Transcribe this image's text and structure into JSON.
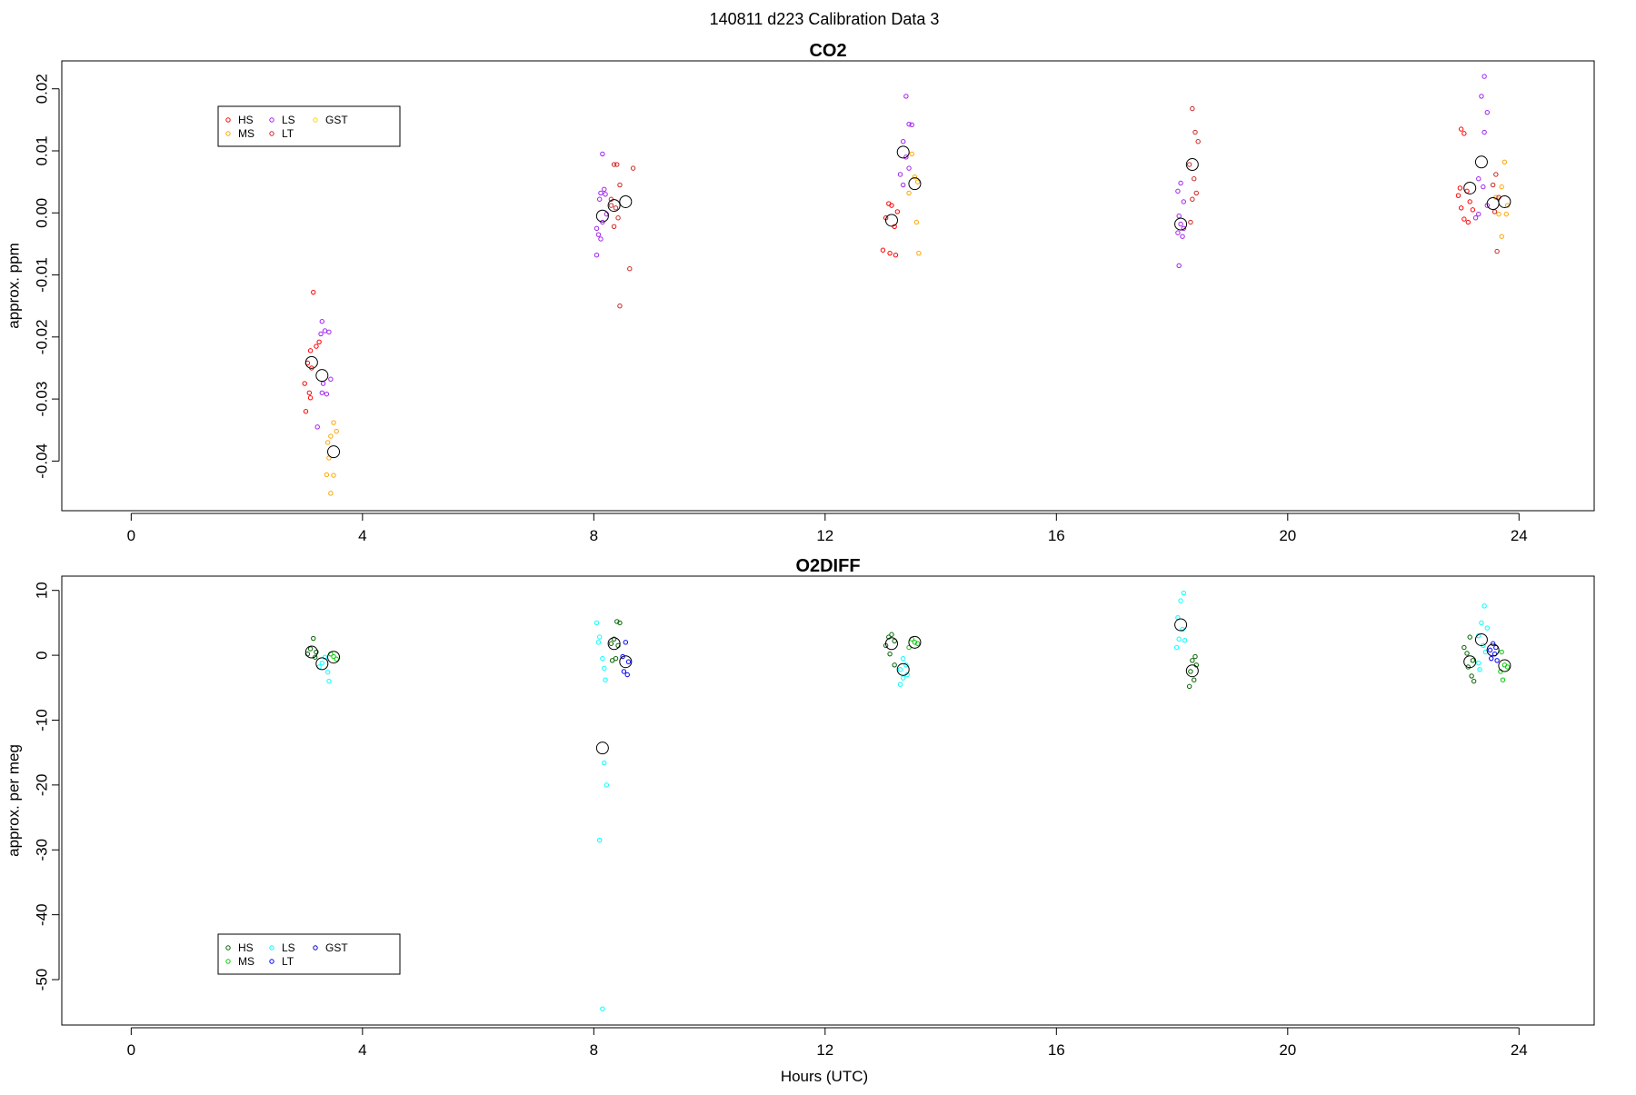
{
  "page_title": "140811   d223   Calibration Data 3",
  "x_axis_label": "Hours (UTC)",
  "chart_data": [
    {
      "type": "scatter",
      "title": "CO2",
      "ylabel": "approx. ppm",
      "xlim": [
        -1.2,
        25.3
      ],
      "ylim": [
        -0.048,
        0.0245
      ],
      "xticks": [
        0,
        4,
        8,
        12,
        16,
        20,
        24
      ],
      "yticks": [
        -0.04,
        -0.03,
        -0.02,
        -0.01,
        0.0,
        0.01,
        0.02
      ],
      "ytick_labels": [
        "-0.04",
        "-0.03",
        "-0.02",
        "-0.01",
        "0.00",
        "0.01",
        "0.02"
      ],
      "grid": false,
      "legend": {
        "position": "top-left",
        "entries": [
          {
            "label": "HS",
            "color": "#ff0000"
          },
          {
            "label": "MS",
            "color": "#ffa500"
          },
          {
            "label": "LS",
            "color": "#a020f0"
          },
          {
            "label": "LT",
            "color": "#cd2626"
          },
          {
            "label": "GST",
            "color": "#ffd700"
          }
        ]
      },
      "series": [
        {
          "color": "#ff0000",
          "points": [
            [
              3.15,
              -0.0128
            ],
            [
              3.1,
              -0.0222
            ],
            [
              3.2,
              -0.0215
            ],
            [
              3.25,
              -0.0208
            ],
            [
              3.05,
              -0.0242
            ],
            [
              3.12,
              -0.025
            ],
            [
              3.0,
              -0.0275
            ],
            [
              3.08,
              -0.029
            ],
            [
              3.1,
              -0.0298
            ],
            [
              3.02,
              -0.032
            ],
            [
              13.05,
              -0.0008
            ],
            [
              13.1,
              0.0015
            ],
            [
              13.15,
              0.0012
            ],
            [
              13.2,
              -0.0022
            ],
            [
              13.0,
              -0.006
            ],
            [
              13.12,
              -0.0065
            ],
            [
              13.22,
              -0.0068
            ],
            [
              13.25,
              0.0002
            ],
            [
              22.95,
              0.0028
            ],
            [
              23.0,
              0.0135
            ],
            [
              23.05,
              0.0128
            ],
            [
              23.1,
              0.0035
            ],
            [
              23.15,
              0.0018
            ],
            [
              23.0,
              0.0008
            ],
            [
              23.05,
              -0.001
            ],
            [
              23.12,
              -0.0015
            ],
            [
              23.2,
              0.0005
            ],
            [
              22.98,
              0.004
            ]
          ]
        },
        {
          "color": "#ffa500",
          "points": [
            [
              3.5,
              -0.0338
            ],
            [
              3.55,
              -0.0352
            ],
            [
              3.45,
              -0.036
            ],
            [
              3.4,
              -0.037
            ],
            [
              3.42,
              -0.0395
            ],
            [
              3.38,
              -0.0422
            ],
            [
              3.5,
              -0.0423
            ],
            [
              3.45,
              -0.0452
            ],
            [
              13.5,
              0.0095
            ],
            [
              13.55,
              0.0058
            ],
            [
              13.6,
              0.005
            ],
            [
              13.45,
              0.0032
            ],
            [
              13.58,
              -0.0015
            ],
            [
              13.62,
              -0.0065
            ],
            [
              23.75,
              0.0082
            ],
            [
              23.7,
              0.0042
            ],
            [
              23.6,
              0.0025
            ],
            [
              23.8,
              0.0012
            ],
            [
              23.65,
              -0.0002
            ],
            [
              23.78,
              -0.0002
            ],
            [
              23.7,
              -0.0038
            ]
          ]
        },
        {
          "color": "#a020f0",
          "points": [
            [
              3.3,
              -0.0175
            ],
            [
              3.35,
              -0.019
            ],
            [
              3.28,
              -0.0195
            ],
            [
              3.42,
              -0.0192
            ],
            [
              3.45,
              -0.0268
            ],
            [
              3.32,
              -0.0275
            ],
            [
              3.3,
              -0.029
            ],
            [
              3.38,
              -0.0292
            ],
            [
              3.22,
              -0.0345
            ],
            [
              8.15,
              0.0095
            ],
            [
              8.18,
              0.0038
            ],
            [
              8.12,
              0.0032
            ],
            [
              8.2,
              0.003
            ],
            [
              8.1,
              0.0022
            ],
            [
              8.22,
              -0.0002
            ],
            [
              8.15,
              -0.0015
            ],
            [
              8.05,
              -0.0025
            ],
            [
              8.08,
              -0.0035
            ],
            [
              8.12,
              -0.0042
            ],
            [
              8.05,
              -0.0068
            ],
            [
              13.4,
              0.0188
            ],
            [
              13.45,
              0.0143
            ],
            [
              13.5,
              0.0142
            ],
            [
              13.35,
              0.0115
            ],
            [
              13.4,
              0.009
            ],
            [
              13.45,
              0.0072
            ],
            [
              13.3,
              0.0062
            ],
            [
              13.35,
              0.0045
            ],
            [
              18.15,
              0.0048
            ],
            [
              18.1,
              0.0035
            ],
            [
              18.2,
              0.0018
            ],
            [
              18.12,
              -0.0005
            ],
            [
              18.15,
              -0.0018
            ],
            [
              18.2,
              -0.0025
            ],
            [
              18.1,
              -0.0032
            ],
            [
              18.18,
              -0.0038
            ],
            [
              18.12,
              -0.0085
            ],
            [
              23.4,
              0.022
            ],
            [
              23.35,
              0.0188
            ],
            [
              23.45,
              0.0162
            ],
            [
              23.4,
              0.013
            ],
            [
              23.3,
              0.0055
            ],
            [
              23.38,
              0.0042
            ],
            [
              23.25,
              -0.0008
            ],
            [
              23.3,
              -0.0002
            ],
            [
              23.45,
              0.0012
            ]
          ]
        },
        {
          "color": "#cd2626",
          "points": [
            [
              8.35,
              0.0078
            ],
            [
              8.4,
              0.0078
            ],
            [
              8.45,
              0.0045
            ],
            [
              8.3,
              0.0012
            ],
            [
              8.38,
              0.0008
            ],
            [
              8.42,
              -0.0008
            ],
            [
              8.35,
              -0.0022
            ],
            [
              8.3,
              0.0022
            ],
            [
              8.68,
              0.0072
            ],
            [
              8.62,
              -0.009
            ],
            [
              8.45,
              -0.015
            ],
            [
              18.35,
              0.0168
            ],
            [
              18.4,
              0.013
            ],
            [
              18.45,
              0.0115
            ],
            [
              18.3,
              0.0078
            ],
            [
              18.38,
              0.0055
            ],
            [
              18.42,
              0.0032
            ],
            [
              18.35,
              0.0022
            ],
            [
              18.32,
              -0.0015
            ],
            [
              23.6,
              0.0062
            ],
            [
              23.55,
              0.0045
            ],
            [
              23.65,
              0.0025
            ],
            [
              23.58,
              0.0002
            ],
            [
              23.62,
              -0.0062
            ]
          ]
        },
        {
          "color": "#000000",
          "marker": "large-open-circle",
          "points": [
            [
              3.12,
              -0.0241
            ],
            [
              3.3,
              -0.0262
            ],
            [
              3.5,
              -0.0385
            ],
            [
              8.15,
              -0.0005
            ],
            [
              8.35,
              0.0012
            ],
            [
              8.55,
              0.0018
            ],
            [
              13.15,
              -0.0012
            ],
            [
              13.35,
              0.0098
            ],
            [
              13.55,
              0.0047
            ],
            [
              18.15,
              -0.0018
            ],
            [
              18.35,
              0.0078
            ],
            [
              23.15,
              0.004
            ],
            [
              23.35,
              0.0082
            ],
            [
              23.55,
              0.0015
            ],
            [
              23.75,
              0.0018
            ]
          ]
        }
      ]
    },
    {
      "type": "scatter",
      "title": "O2DIFF",
      "ylabel": "approx. per meg",
      "xlim": [
        -1.2,
        25.3
      ],
      "ylim": [
        -57,
        12.2
      ],
      "xticks": [
        0,
        4,
        8,
        12,
        16,
        20,
        24
      ],
      "yticks": [
        -50,
        -40,
        -30,
        -20,
        -10,
        0,
        10
      ],
      "ytick_labels": [
        "-50",
        "-40",
        "-30",
        "-20",
        "-10",
        "0",
        "10"
      ],
      "grid": false,
      "legend": {
        "position": "bottom-left",
        "entries": [
          {
            "label": "HS",
            "color": "#006400"
          },
          {
            "label": "MS",
            "color": "#00cd00"
          },
          {
            "label": "LS",
            "color": "#00ffff"
          },
          {
            "label": "LT",
            "color": "#0000ff"
          },
          {
            "label": "GST",
            "color": "#0000cd"
          }
        ]
      },
      "series": [
        {
          "color": "#006400",
          "points": [
            [
              3.15,
              2.6
            ],
            [
              3.1,
              1.0
            ],
            [
              3.2,
              0.5
            ],
            [
              3.05,
              0.2
            ],
            [
              3.18,
              -0.3
            ],
            [
              8.4,
              5.2
            ],
            [
              8.45,
              5.0
            ],
            [
              8.35,
              2.5
            ],
            [
              8.3,
              1.8
            ],
            [
              8.42,
              1.5
            ],
            [
              8.38,
              -0.5
            ],
            [
              8.32,
              -0.8
            ],
            [
              13.15,
              3.2
            ],
            [
              13.1,
              2.8
            ],
            [
              13.2,
              2.2
            ],
            [
              13.05,
              1.5
            ],
            [
              13.12,
              0.2
            ],
            [
              13.2,
              -1.5
            ],
            [
              18.4,
              -0.2
            ],
            [
              18.35,
              -0.8
            ],
            [
              18.42,
              -1.5
            ],
            [
              18.32,
              -2.5
            ],
            [
              18.38,
              -3.8
            ],
            [
              18.3,
              -4.8
            ],
            [
              23.15,
              2.8
            ],
            [
              23.05,
              1.2
            ],
            [
              23.1,
              0.3
            ],
            [
              23.2,
              -0.8
            ],
            [
              23.12,
              -1.8
            ],
            [
              23.18,
              -3.2
            ],
            [
              23.22,
              -4.0
            ]
          ]
        },
        {
          "color": "#00cd00",
          "points": [
            [
              3.45,
              0.2
            ],
            [
              3.5,
              -0.2
            ],
            [
              3.55,
              -0.6
            ],
            [
              13.5,
              2.5
            ],
            [
              13.55,
              2.0
            ],
            [
              13.6,
              1.8
            ],
            [
              13.45,
              1.2
            ],
            [
              23.7,
              0.5
            ],
            [
              23.75,
              -1.5
            ],
            [
              23.8,
              -1.8
            ],
            [
              23.68,
              -2.5
            ],
            [
              23.72,
              -3.8
            ]
          ]
        },
        {
          "color": "#00ffff",
          "points": [
            [
              3.35,
              -0.3
            ],
            [
              3.3,
              -1.2
            ],
            [
              3.25,
              -1.8
            ],
            [
              3.4,
              -2.6
            ],
            [
              3.42,
              -4.0
            ],
            [
              8.05,
              5.0
            ],
            [
              8.1,
              2.8
            ],
            [
              8.08,
              2.0
            ],
            [
              8.15,
              -0.5
            ],
            [
              8.18,
              -2.0
            ],
            [
              8.2,
              -3.8
            ],
            [
              8.18,
              -16.6
            ],
            [
              8.22,
              -20.0
            ],
            [
              8.1,
              -28.5
            ],
            [
              8.15,
              -54.5
            ],
            [
              13.35,
              -0.5
            ],
            [
              13.4,
              -1.5
            ],
            [
              13.3,
              -2.2
            ],
            [
              13.42,
              -3.0
            ],
            [
              13.35,
              -3.5
            ],
            [
              13.3,
              -4.5
            ],
            [
              18.2,
              9.6
            ],
            [
              18.15,
              8.4
            ],
            [
              18.1,
              5.8
            ],
            [
              18.18,
              4.0
            ],
            [
              18.12,
              2.5
            ],
            [
              18.22,
              2.3
            ],
            [
              18.08,
              1.2
            ],
            [
              23.4,
              7.6
            ],
            [
              23.35,
              5.0
            ],
            [
              23.45,
              4.2
            ],
            [
              23.3,
              3.0
            ],
            [
              23.38,
              1.5
            ],
            [
              23.42,
              0.5
            ],
            [
              23.3,
              -1.2
            ],
            [
              23.32,
              -2.2
            ]
          ]
        },
        {
          "color": "#0000ff",
          "points": [
            [
              8.55,
              2.0
            ],
            [
              8.5,
              -0.2
            ],
            [
              8.6,
              -1.0
            ],
            [
              8.52,
              -2.5
            ],
            [
              8.58,
              -3.0
            ],
            [
              23.55,
              1.8
            ],
            [
              23.6,
              1.2
            ],
            [
              23.5,
              0.8
            ],
            [
              23.58,
              0.2
            ],
            [
              23.52,
              -0.5
            ],
            [
              23.62,
              -0.8
            ]
          ]
        },
        {
          "color": "#000000",
          "marker": "large-open-circle",
          "points": [
            [
              3.12,
              0.5
            ],
            [
              3.3,
              -1.3
            ],
            [
              3.5,
              -0.3
            ],
            [
              8.15,
              -14.3
            ],
            [
              8.35,
              1.8
            ],
            [
              8.55,
              -1.0
            ],
            [
              13.15,
              1.8
            ],
            [
              13.35,
              -2.2
            ],
            [
              13.55,
              2.0
            ],
            [
              18.15,
              4.7
            ],
            [
              18.35,
              -2.4
            ],
            [
              23.15,
              -1.0
            ],
            [
              23.35,
              2.4
            ],
            [
              23.55,
              0.8
            ],
            [
              23.75,
              -1.6
            ]
          ]
        }
      ]
    }
  ]
}
